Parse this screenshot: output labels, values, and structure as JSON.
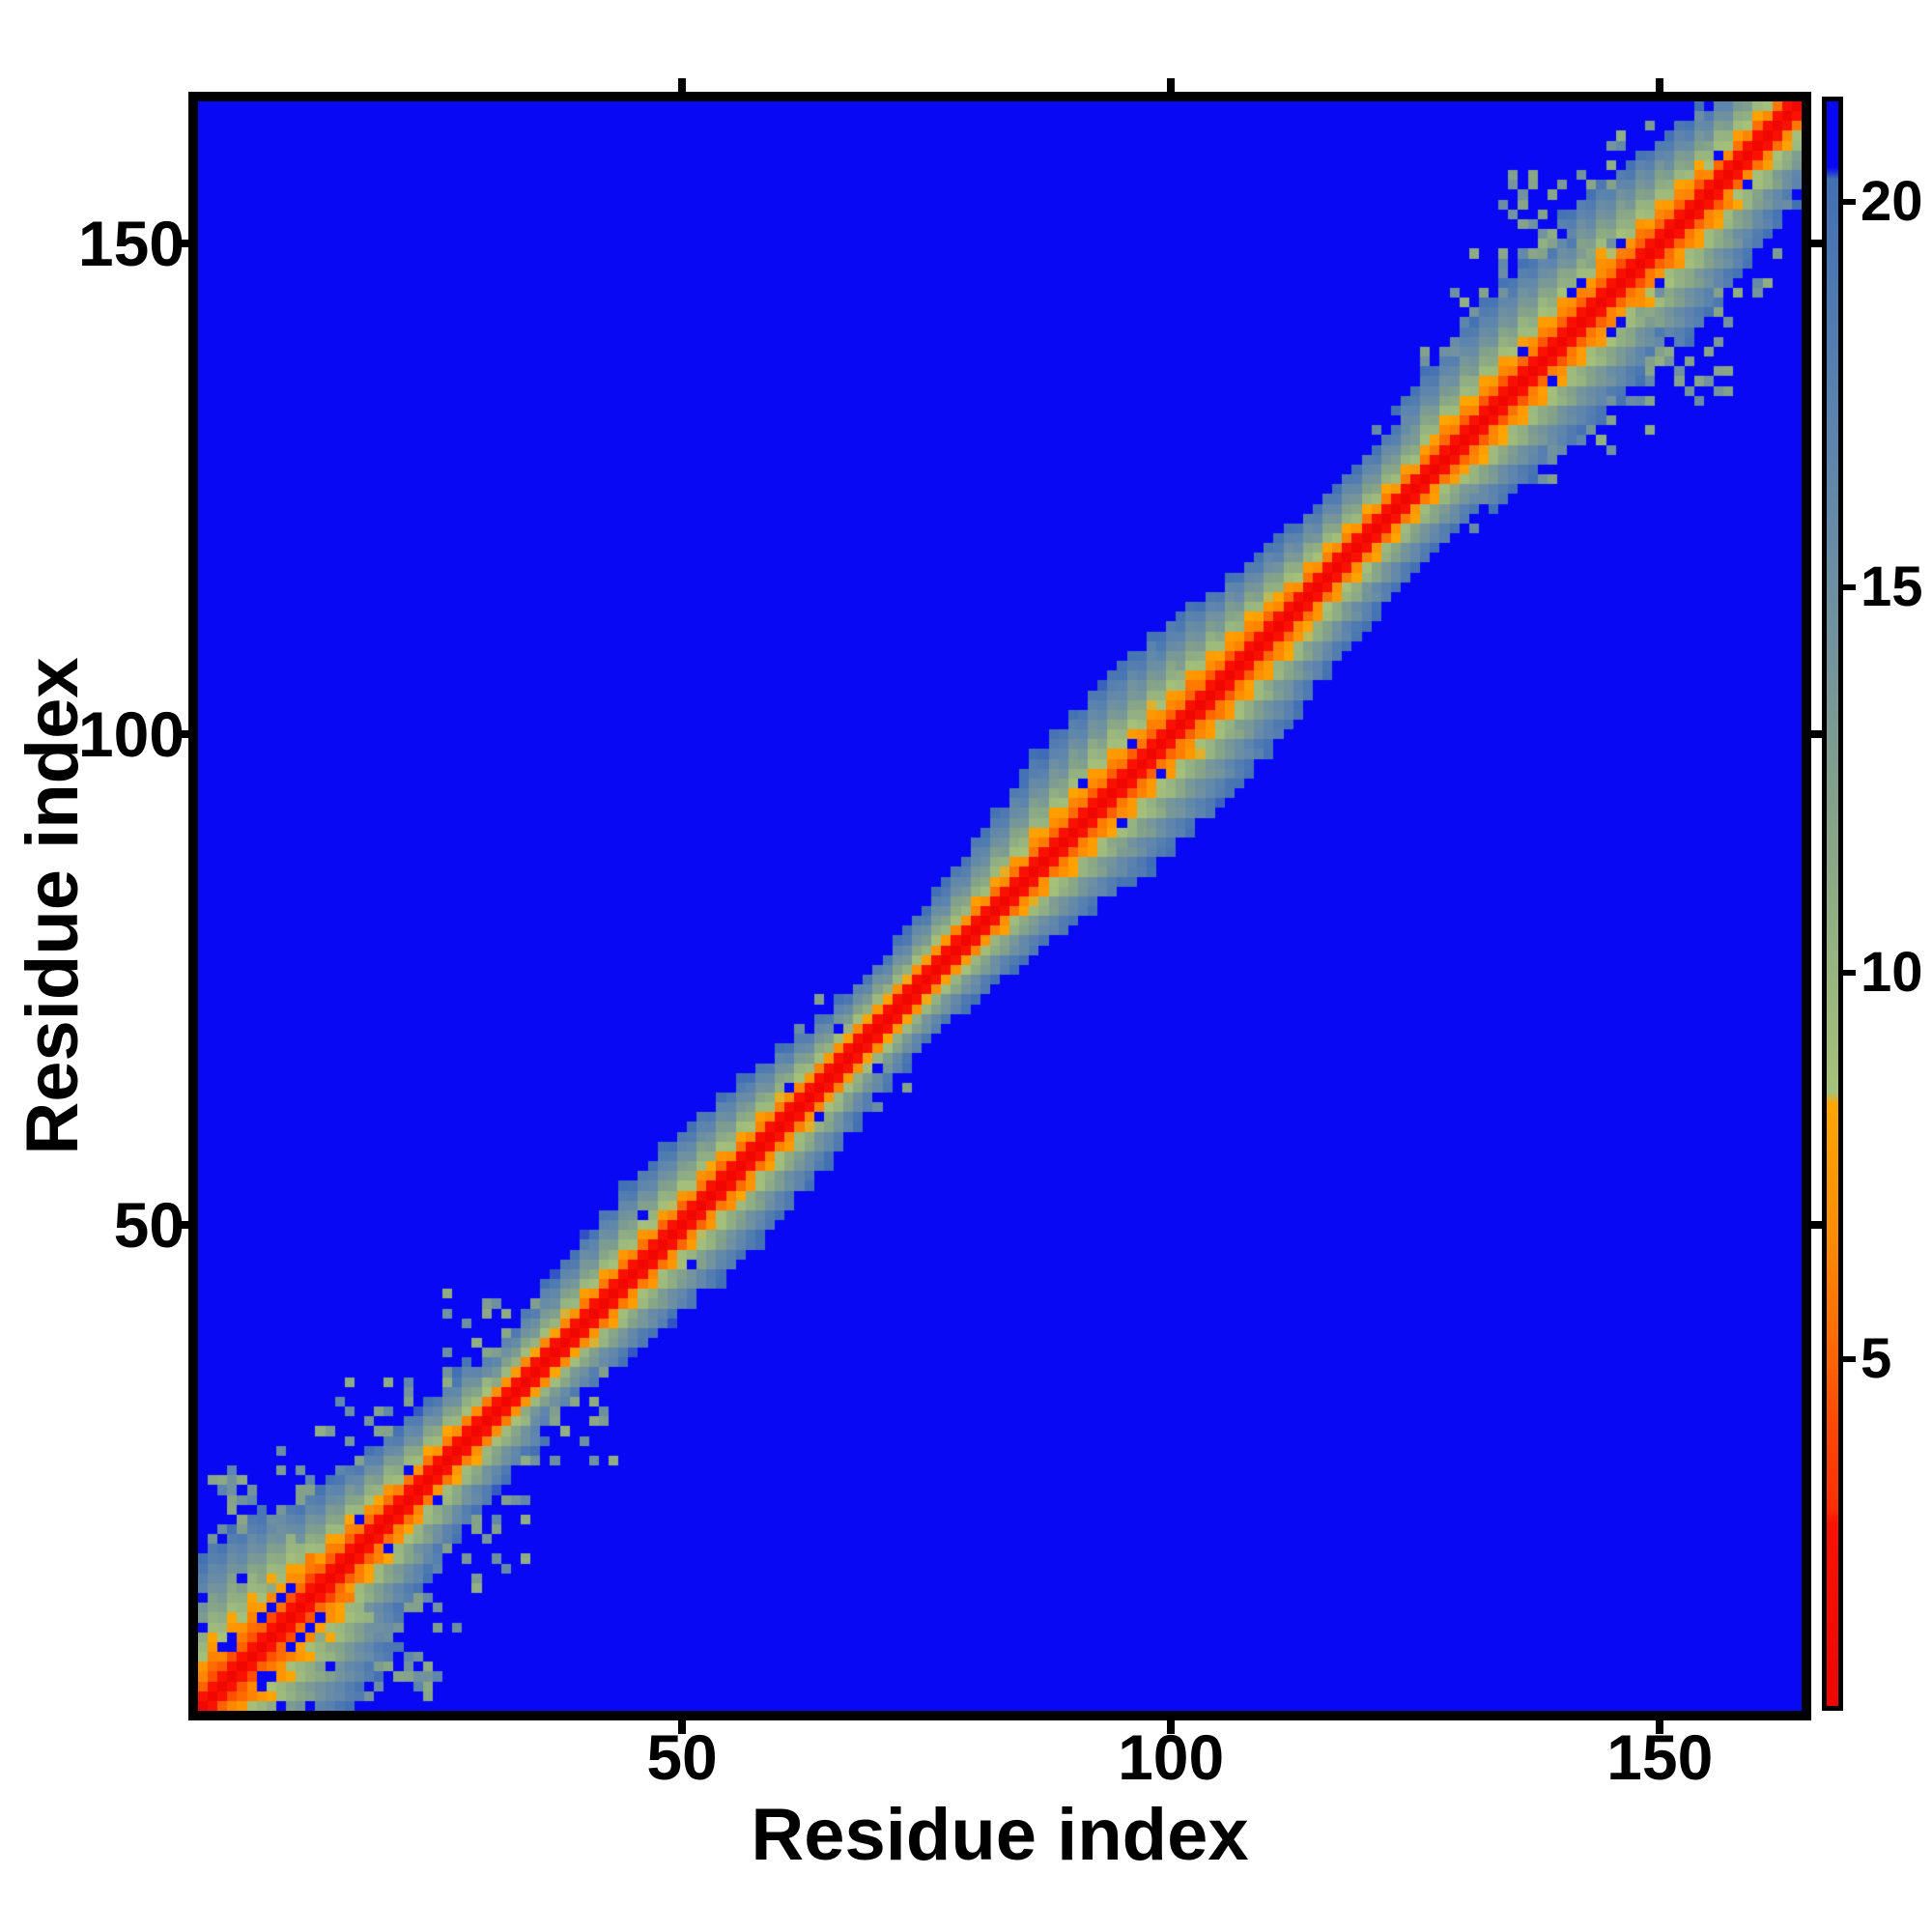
{
  "figure": {
    "background": "#ffffff",
    "frame_color": "#000000"
  },
  "axes": {
    "xlabel": "Residue index",
    "ylabel": "Residue index",
    "x_ticks": [
      50,
      100,
      150
    ],
    "y_ticks": [
      50,
      100,
      150
    ],
    "x_range": [
      0.5,
      164.5
    ],
    "y_range": [
      0.5,
      164.5
    ]
  },
  "colorbar": {
    "ticks": [
      20,
      15,
      10,
      5
    ],
    "vmin": 0.5,
    "vmax": 21.3
  },
  "chart_data": {
    "type": "heatmap",
    "title": "",
    "xlabel": "Residue index",
    "ylabel": "Residue index",
    "x_tick_labels": [
      "50",
      "100",
      "150"
    ],
    "y_tick_labels": [
      "50",
      "100",
      "150"
    ],
    "colorbar_tick_labels": [
      "20",
      "15",
      "10",
      "5"
    ],
    "n_residues": 164,
    "value_range": [
      0.5,
      21.3
    ],
    "background_value_color": "#0808f5",
    "colormap_stops": [
      [
        0.5,
        "#ee0600"
      ],
      [
        2.85,
        "#fb1200"
      ],
      [
        3.05,
        "#ff2e00"
      ],
      [
        4.2,
        "#ff4a00"
      ],
      [
        5.2,
        "#ff6a00"
      ],
      [
        6.6,
        "#ff8c00"
      ],
      [
        8.3,
        "#ffa600"
      ],
      [
        8.45,
        "#a6c178"
      ],
      [
        10,
        "#98b580"
      ],
      [
        12,
        "#85a388"
      ],
      [
        14,
        "#74949c"
      ],
      [
        17,
        "#5c84ae"
      ],
      [
        20.3,
        "#4270b4"
      ],
      [
        20.45,
        "#0808f5"
      ],
      [
        21.3,
        "#0808f5"
      ]
    ],
    "band_model": {
      "seed": 42,
      "d_k0": 0.8,
      "d_k1": 2.6,
      "slope": 1.95,
      "intercept": 4.2,
      "nominal_halfwidth": 9.5,
      "halfwidth_waves": [
        [
          7.3,
          0.8,
          2.0
        ],
        [
          19,
          2.1,
          1.5
        ]
      ],
      "halfwidth_boosts": [
        [
          1,
          14,
          4.0
        ],
        [
          14,
          32,
          1.5
        ],
        [
          128,
          145,
          1.2
        ],
        [
          146,
          164,
          2.8
        ]
      ],
      "oscillation": {
        "base": 0.25,
        "per_k": 0.12,
        "max": 0.9
      },
      "noise": 0.9,
      "edge_speck_prob": 0.02,
      "hole_prob": 0.004
    },
    "features": {
      "corner_cluster": {
        "range": [
          1,
          14
        ],
        "base": 4.8,
        "slope": 1.05,
        "noise": 2.4,
        "hole_prob": 0.1
      },
      "speck_clusters": [
        {
          "center": [
            8,
            19
          ],
          "radius": 6,
          "prob": 0.3
        },
        {
          "center": [
            14,
            25
          ],
          "radius": 5,
          "prob": 0.18
        },
        {
          "center": [
            20,
            29
          ],
          "radius": 5,
          "prob": 0.15
        },
        {
          "center": [
            31,
            38
          ],
          "radius": 5,
          "prob": 0.15
        },
        {
          "center": [
            135,
            143
          ],
          "radius": 6,
          "prob": 0.22
        },
        {
          "center": [
            141,
            150
          ],
          "radius": 7,
          "prob": 0.25
        },
        {
          "center": [
            150,
            157
          ],
          "radius": 5,
          "prob": 0.18
        },
        {
          "center": [
            64,
            70
          ],
          "radius": 3,
          "prob": 0.08
        },
        {
          "center": [
            92,
            98
          ],
          "radius": 3,
          "prob": 0.08
        }
      ],
      "holes": [
        [
          61,
          64
        ],
        [
          66,
          70
        ],
        [
          91,
          95
        ],
        [
          96,
          99
        ],
        [
          17,
          20
        ],
        [
          22,
          25
        ],
        [
          4,
          8
        ],
        [
          8,
          11
        ],
        [
          142,
          146
        ],
        [
          146,
          150
        ],
        [
          156,
          159
        ],
        [
          136,
          139
        ]
      ]
    },
    "description": "Symmetric residue-residue distance matrix (~164 residues). Short distances (red/orange) along the diagonal fade through pale green and steel blue into a uniform blue background beyond ~20. The contact band widens near both termini with scattered off-diagonal specks and occasional blue holes."
  }
}
